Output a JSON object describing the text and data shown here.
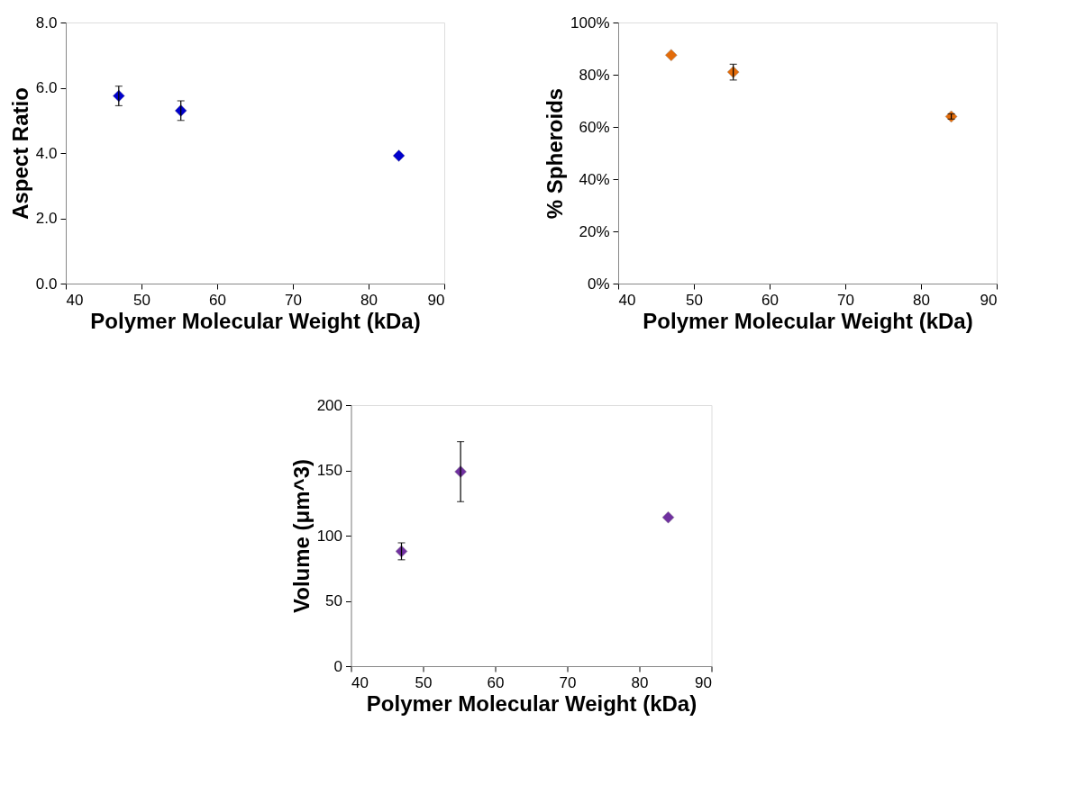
{
  "chart_data": [
    {
      "type": "scatter",
      "xlabel": "Polymer Molecular Weight (kDa)",
      "ylabel": "Aspect Ratio",
      "x": [
        47,
        55.2,
        84
      ],
      "values": [
        5.75,
        5.3,
        3.92
      ],
      "errors": [
        0.3,
        0.3,
        null
      ],
      "color": "#0000cc",
      "marker": "diamond",
      "grid": false,
      "xlim": [
        40,
        90
      ],
      "xticks": [
        40,
        50,
        60,
        70,
        80,
        90
      ],
      "ylim": [
        0,
        8
      ],
      "yticks": [
        {
          "value": 0,
          "label": "0.0"
        },
        {
          "value": 2,
          "label": "2.0"
        },
        {
          "value": 4,
          "label": "4.0"
        },
        {
          "value": 6,
          "label": "6.0"
        },
        {
          "value": 8,
          "label": "8.0"
        }
      ]
    },
    {
      "type": "scatter",
      "xlabel": "Polymer Molecular Weight (kDa)",
      "ylabel": "% Spheroids",
      "x": [
        47,
        55.2,
        84
      ],
      "values": [
        87.5,
        81,
        64
      ],
      "errors": [
        null,
        3,
        1
      ],
      "color": "#e36c0a",
      "marker": "diamond",
      "grid": false,
      "xlim": [
        40,
        90
      ],
      "xticks": [
        40,
        50,
        60,
        70,
        80,
        90
      ],
      "ylim": [
        0,
        100
      ],
      "yticks": [
        {
          "value": 0,
          "label": "0%"
        },
        {
          "value": 20,
          "label": "20%"
        },
        {
          "value": 40,
          "label": "40%"
        },
        {
          "value": 60,
          "label": "60%"
        },
        {
          "value": 80,
          "label": "80%"
        },
        {
          "value": 100,
          "label": "100%"
        }
      ]
    },
    {
      "type": "scatter",
      "xlabel": "Polymer Molecular Weight (kDa)",
      "ylabel": "Volume (μm^3)",
      "x": [
        47,
        55.2,
        84
      ],
      "values": [
        88,
        149,
        114
      ],
      "errors": [
        6.5,
        23,
        null
      ],
      "color": "#7030a0",
      "marker": "diamond",
      "grid": false,
      "xlim": [
        40,
        90
      ],
      "xticks": [
        40,
        50,
        60,
        70,
        80,
        90
      ],
      "ylim": [
        0,
        200
      ],
      "yticks": [
        0,
        50,
        100,
        150,
        200
      ]
    }
  ]
}
